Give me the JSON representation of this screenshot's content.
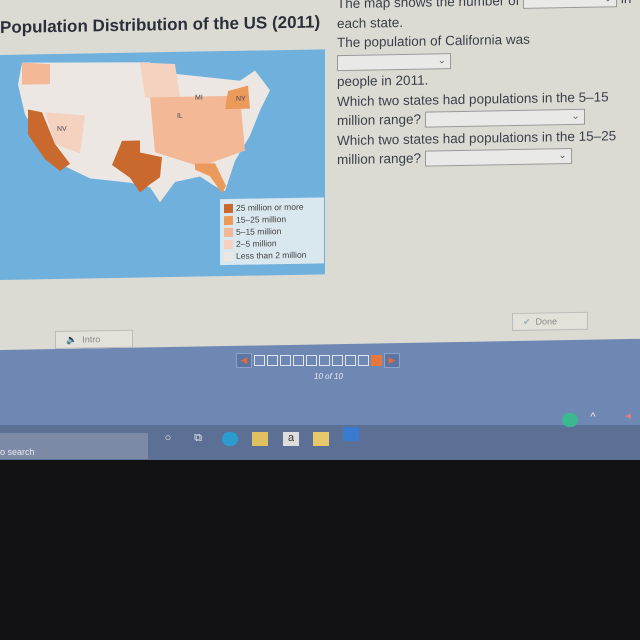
{
  "map_panel": {
    "title": "Population Distribution of the US (2011)",
    "state_labels": [
      "NV",
      "MI",
      "IL",
      "NY"
    ],
    "legend": [
      {
        "label": "25 million or more",
        "color": "#c9692e"
      },
      {
        "label": "15–25 million",
        "color": "#ec9a5c"
      },
      {
        "label": "5–15 million",
        "color": "#f3b895"
      },
      {
        "label": "2–5 million",
        "color": "#f4d2bf"
      },
      {
        "label": "Less than 2 million",
        "color": "#ece7e2"
      }
    ]
  },
  "questions": {
    "q1_before": "The map shows the number of",
    "q1_after": "in",
    "q1_end": "each state.",
    "q2_before": "The population of California was",
    "q2_end": "people in 2011.",
    "q3": "Which two states had populations in the 5–15 million range?",
    "q4": "Which two states had populations in the 15–25 million range?"
  },
  "buttons": {
    "intro": "Intro",
    "done": "Done"
  },
  "pager": {
    "current": 10,
    "total": 10,
    "label": "10 of 10",
    "active_color": "#e8773c"
  },
  "taskbar": {
    "search_placeholder": "o search"
  }
}
